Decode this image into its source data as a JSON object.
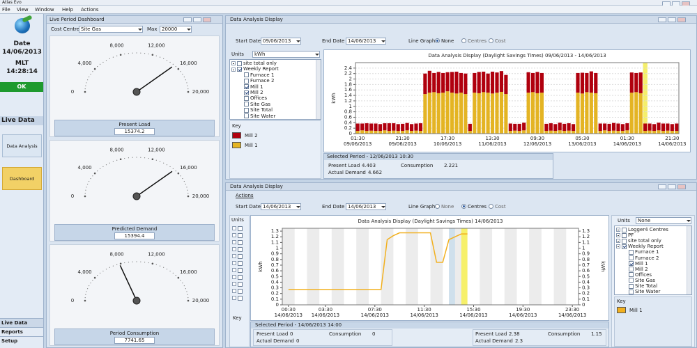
{
  "app": {
    "title": "Atlas Evo",
    "menu": [
      "File",
      "View",
      "Window",
      "Help",
      "Actions"
    ]
  },
  "sidebar": {
    "date_label": "Date",
    "date": "14/06/2013",
    "zone": "MLT",
    "time": "14:28:14",
    "status": "OK",
    "section": "Live Data",
    "buttons": [
      {
        "label": "Data Analysis",
        "active": false
      },
      {
        "label": "Dashboard",
        "active": true
      }
    ],
    "nav": [
      "Live Data",
      "Reports",
      "Setup"
    ]
  },
  "dashboard": {
    "title": "Live Period Dashboard",
    "cost_centre_label": "Cost Centre",
    "cost_centre": "Site Gas",
    "max_label": "Max",
    "max": 20000,
    "gauge_range": [
      0,
      20000
    ],
    "gauge_ticks": [
      0,
      {
        "value": 4000,
        "label": "4,000"
      },
      {
        "value": 8000,
        "label": "8,000"
      },
      {
        "value": 12000,
        "label": "12,000"
      },
      {
        "value": 16000,
        "label": "16,000"
      },
      {
        "value": 20000,
        "label": "20,000"
      }
    ],
    "gauges": [
      {
        "label": "Present Load",
        "value": 15374.2
      },
      {
        "label": "Predicted Demand",
        "value": 15394.4
      },
      {
        "label": "Period Consumption",
        "value": 7741.65
      }
    ]
  },
  "analysis": [
    {
      "title": "Data Analysis Display",
      "start_label": "Start Date",
      "start": "09/06/2013",
      "end_label": "End Date",
      "end": "14/06/2013",
      "line_graph_label": "Line Graph",
      "line_options": [
        "None",
        "Centres",
        "Cost"
      ],
      "line_selected": 0,
      "units_label": "Units",
      "units": "kWh",
      "tree": [
        {
          "label": "site total only",
          "level": 0,
          "checked": false
        },
        {
          "label": "Weekly Report",
          "level": 0,
          "checked": true
        },
        {
          "label": "Furnace 1",
          "level": 1,
          "checked": false
        },
        {
          "label": "Furnace 2",
          "level": 1,
          "checked": false
        },
        {
          "label": "Mill 1",
          "level": 1,
          "checked": true
        },
        {
          "label": "Mill 2",
          "level": 1,
          "checked": true
        },
        {
          "label": "Offices",
          "level": 1,
          "checked": false
        },
        {
          "label": "Site Gas",
          "level": 1,
          "checked": false
        },
        {
          "label": "Site Total",
          "level": 1,
          "checked": false
        },
        {
          "label": "Site Water",
          "level": 1,
          "checked": false
        }
      ],
      "key_label": "Key",
      "selected_period": "Selected Period - 12/06/2013 10:30",
      "stats": [
        [
          {
            "label": "Present Load",
            "value": 4.403
          },
          {
            "label": "Consumption",
            "value": 2.221
          },
          {
            "label": "Actual Demand",
            "value": 4.662
          }
        ]
      ]
    },
    {
      "title": "Data Analysis Display",
      "menu": "Actions",
      "start_label": "Start Date",
      "start": "14/06/2013",
      "end_label": "End Date",
      "end": "14/06/2013",
      "line_graph_label": "Line Graph",
      "line_options": [
        "None",
        "Centres",
        "Cost"
      ],
      "line_selected": 1,
      "units_label": "Units",
      "units": "None",
      "side_units_label": "Units",
      "side_key_label": "Key",
      "tree": [
        {
          "label": "Logger4 Centres",
          "level": 0,
          "checked": false
        },
        {
          "label": "PF",
          "level": 0,
          "checked": false
        },
        {
          "label": "site total only",
          "level": 0,
          "checked": false
        },
        {
          "label": "Weekly Report",
          "level": 0,
          "checked": true
        },
        {
          "label": "Furnace 1",
          "level": 1,
          "checked": false
        },
        {
          "label": "Furnace 2",
          "level": 1,
          "checked": false
        },
        {
          "label": "Mill 1",
          "level": 1,
          "checked": true
        },
        {
          "label": "Mill 2",
          "level": 1,
          "checked": false
        },
        {
          "label": "Offices",
          "level": 1,
          "checked": false
        },
        {
          "label": "Site Gas",
          "level": 1,
          "checked": false
        },
        {
          "label": "Site Total",
          "level": 1,
          "checked": false
        },
        {
          "label": "Site Water",
          "level": 1,
          "checked": false
        }
      ],
      "key_label": "Key",
      "selected_period": "Selected Period - 14/06/2013 14:00",
      "stats": [
        [
          {
            "label": "Present Load",
            "value": 0
          },
          {
            "label": "Consumption",
            "value": 0
          },
          {
            "label": "Actual Demand",
            "value": 0
          }
        ],
        [
          {
            "label": "Present Load",
            "value": 2.38
          },
          {
            "label": "Consumption",
            "value": 1.15
          },
          {
            "label": "Actual Demand",
            "value": 2.3
          }
        ]
      ]
    }
  ],
  "chart_data": [
    {
      "type": "stacked_bar",
      "title": "Data Analysis Display (Daylight Savings Times) 09/06/2013 - 14/06/2013",
      "ylabel": "kWh",
      "categories": [
        "01:30\n09/06/2013",
        null,
        null,
        null,
        null,
        null,
        null,
        null,
        null,
        null,
        "21:30\n09/06/2013",
        null,
        null,
        null,
        null,
        null,
        null,
        null,
        null,
        null,
        "17:30\n10/06/2013",
        null,
        null,
        null,
        null,
        null,
        null,
        null,
        null,
        null,
        "13:30\n11/06/2013",
        null,
        null,
        null,
        null,
        null,
        null,
        null,
        null,
        null,
        "09:30\n12/06/2013",
        null,
        null,
        null,
        null,
        null,
        null,
        null,
        null,
        null,
        "05:30\n13/06/2013",
        null,
        null,
        null,
        null,
        null,
        null,
        null,
        null,
        null,
        "01:30\n14/06/2013",
        null,
        null,
        null,
        null,
        null,
        null,
        null,
        null,
        null,
        "21:30\n14/06/2013",
        null
      ],
      "series": [
        {
          "name": "Mill 1",
          "color": "#e4b423",
          "values": [
            0.1,
            0.12,
            0.1,
            0.11,
            0.1,
            0.1,
            0.12,
            0.1,
            0.11,
            0.1,
            0.1,
            0.12,
            0.1,
            0.11,
            0.1,
            1.45,
            1.5,
            1.52,
            1.48,
            1.5,
            1.55,
            1.5,
            1.47,
            1.5,
            1.45,
            0.1,
            1.5,
            1.48,
            1.52,
            1.5,
            1.47,
            1.5,
            1.53,
            1.45,
            0.1,
            0.11,
            0.1,
            0.12,
            1.5,
            1.52,
            1.48,
            1.5,
            0.1,
            0.11,
            0.1,
            0.12,
            0.1,
            0.11,
            0.1,
            1.5,
            1.47,
            1.52,
            1.5,
            1.48,
            0.1,
            0.12,
            0.1,
            0.11,
            0.1,
            0.1,
            0.12,
            1.5,
            1.52,
            1.48,
            0.1,
            0.11,
            0.1,
            0.12,
            0.1,
            0.11,
            0.1,
            0.1
          ]
        },
        {
          "name": "Mill 2",
          "color": "#b0000e",
          "values": [
            0.27,
            0.25,
            0.28,
            0.26,
            0.27,
            0.25,
            0.26,
            0.28,
            0.27,
            0.25,
            0.26,
            0.27,
            0.25,
            0.26,
            0.28,
            0.75,
            0.8,
            0.7,
            0.78,
            0.72,
            0.7,
            0.76,
            0.8,
            0.72,
            0.75,
            0.26,
            0.72,
            0.78,
            0.75,
            0.7,
            0.8,
            0.74,
            0.76,
            0.7,
            0.27,
            0.25,
            0.26,
            0.28,
            0.75,
            0.7,
            0.78,
            0.72,
            0.26,
            0.27,
            0.25,
            0.28,
            0.26,
            0.27,
            0.25,
            0.72,
            0.76,
            0.7,
            0.78,
            0.74,
            0.27,
            0.25,
            0.26,
            0.28,
            0.27,
            0.25,
            0.26,
            0.74,
            0.7,
            0.76,
            0.27,
            0.26,
            0.25,
            0.28,
            0.27,
            0.26,
            0.25,
            0.27
          ]
        }
      ],
      "ylim": [
        0,
        2.6
      ],
      "yticks": [
        0,
        0.2,
        0.4,
        0.6,
        0.8,
        1,
        1.2,
        1.4,
        1.6,
        1.8,
        2,
        2.2,
        2.4
      ],
      "grid": true,
      "highlight": {
        "index": 64,
        "color": "#f5ef6a"
      }
    },
    {
      "type": "line",
      "title": "Data Analysis Display (Daylight Savings Times) 14/06/2013",
      "ylabel": "kWh",
      "y2label": "kWh",
      "x": [
        "00:30",
        "01:00",
        "01:30",
        "02:00",
        "02:30",
        "03:00",
        "03:30",
        "04:00",
        "04:30",
        "05:00",
        "05:30",
        "06:00",
        "06:30",
        "07:00",
        "07:30",
        "08:00",
        "08:30",
        "09:00",
        "09:30",
        "10:00",
        "10:30",
        "11:00",
        "11:30",
        "12:00",
        "12:30",
        "13:00",
        "13:30",
        "14:00",
        "14:30",
        "15:00"
      ],
      "series": [
        {
          "name": "Mill 1",
          "color": "#f2b01e",
          "values": [
            0.27,
            0.27,
            0.27,
            0.27,
            0.27,
            0.27,
            0.27,
            0.27,
            0.27,
            0.27,
            0.27,
            0.27,
            0.27,
            0.27,
            0.27,
            0.27,
            1.15,
            1.22,
            1.27,
            1.27,
            1.27,
            1.27,
            1.27,
            1.27,
            0.75,
            0.75,
            1.15,
            1.2,
            1.25,
            1.25
          ]
        }
      ],
      "xlim": [
        "00:00",
        "24:00"
      ],
      "xticks": [
        {
          "value": "00:30",
          "label": "00:30\n14/06/2013"
        },
        {
          "value": "03:30",
          "label": "03:30\n14/06/2013"
        },
        {
          "value": "07:30",
          "label": "07:30\n14/06/2013"
        },
        {
          "value": "11:30",
          "label": "11:30\n14/06/2013"
        },
        {
          "value": "15:30",
          "label": "15:30\n14/06/2013"
        },
        {
          "value": "19:30",
          "label": "19:30\n14/06/2013"
        },
        {
          "value": "23:30",
          "label": "23:30\n14/06/2013"
        }
      ],
      "ylim": [
        0,
        1.35
      ],
      "yticks": [
        0,
        0.1,
        0.2,
        0.3,
        0.4,
        0.5,
        0.6,
        0.7,
        0.8,
        0.9,
        1,
        1.1,
        1.2,
        1.3
      ],
      "y2lim": [
        0,
        1.35
      ],
      "y2ticks": [
        0,
        0.1,
        0.2,
        0.3,
        0.4,
        0.5,
        0.6,
        0.7,
        0.8,
        0.9,
        1,
        1.1,
        1.2,
        1.3
      ],
      "grid": true,
      "highlights": [
        {
          "x": "13:30",
          "color": "#cfe0ec"
        },
        {
          "x": "14:30",
          "color": "#f6f06a"
        }
      ]
    }
  ]
}
